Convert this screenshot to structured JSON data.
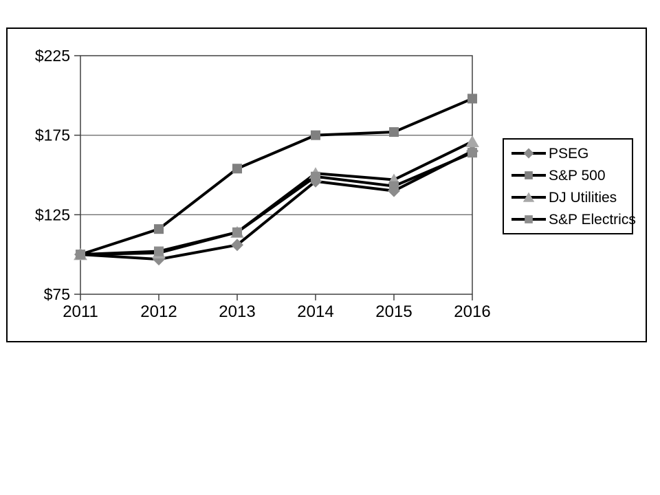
{
  "chart_data": {
    "type": "line",
    "title": "",
    "xlabel": "",
    "ylabel": "",
    "x_labels": [
      "2011",
      "2012",
      "2013",
      "2014",
      "2015",
      "2016"
    ],
    "y_tick_labels": [
      "$225",
      "$175",
      "$125",
      "$75"
    ],
    "y_tick_values": [
      225,
      175,
      125,
      75
    ],
    "ylim": [
      75,
      225
    ],
    "grid": true,
    "legend_position": "right",
    "line_color": "#000000",
    "grid_color": "#707070",
    "frame_color": "#404040",
    "label_color": "#000000",
    "series": [
      {
        "name": "PSEG",
        "marker": "diamond",
        "marker_color": "#8c8c8c",
        "values": [
          100,
          97,
          106,
          146,
          140,
          165
        ]
      },
      {
        "name": "S&P 500",
        "marker": "square",
        "marker_color": "#808080",
        "values": [
          100,
          116,
          154,
          175,
          177,
          198
        ]
      },
      {
        "name": "DJ Utilities",
        "marker": "triangle",
        "marker_color": "#a8a8a8",
        "values": [
          100,
          101,
          114,
          151,
          147,
          171
        ]
      },
      {
        "name": "S&P Electrics",
        "marker": "square",
        "marker_color": "#8c8c8c",
        "values": [
          100,
          102,
          114,
          149,
          143,
          164
        ]
      }
    ]
  }
}
